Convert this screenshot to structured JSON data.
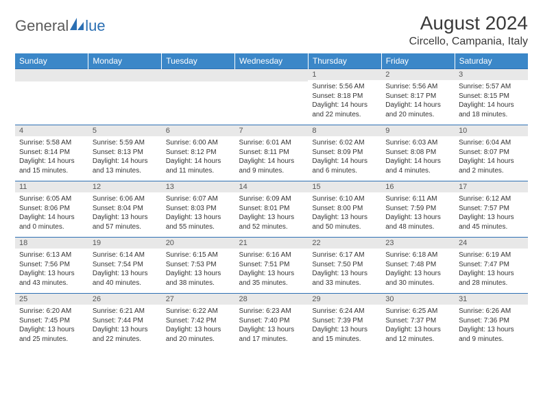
{
  "logo": {
    "textGeneral": "General",
    "textBlue": "lue"
  },
  "title": "August 2024",
  "location": "Circello, Campania, Italy",
  "colors": {
    "headerBlue": "#3b87c8",
    "borderBlue": "#2b6fb3",
    "dayBarGray": "#e8e8e8",
    "textDark": "#3a3a3a",
    "logoGray": "#5a5a5a"
  },
  "weekdays": [
    "Sunday",
    "Monday",
    "Tuesday",
    "Wednesday",
    "Thursday",
    "Friday",
    "Saturday"
  ],
  "weeks": [
    [
      null,
      null,
      null,
      null,
      {
        "n": "1",
        "sunrise": "5:56 AM",
        "sunset": "8:18 PM",
        "daylight": "14 hours and 22 minutes."
      },
      {
        "n": "2",
        "sunrise": "5:56 AM",
        "sunset": "8:17 PM",
        "daylight": "14 hours and 20 minutes."
      },
      {
        "n": "3",
        "sunrise": "5:57 AM",
        "sunset": "8:15 PM",
        "daylight": "14 hours and 18 minutes."
      }
    ],
    [
      {
        "n": "4",
        "sunrise": "5:58 AM",
        "sunset": "8:14 PM",
        "daylight": "14 hours and 15 minutes."
      },
      {
        "n": "5",
        "sunrise": "5:59 AM",
        "sunset": "8:13 PM",
        "daylight": "14 hours and 13 minutes."
      },
      {
        "n": "6",
        "sunrise": "6:00 AM",
        "sunset": "8:12 PM",
        "daylight": "14 hours and 11 minutes."
      },
      {
        "n": "7",
        "sunrise": "6:01 AM",
        "sunset": "8:11 PM",
        "daylight": "14 hours and 9 minutes."
      },
      {
        "n": "8",
        "sunrise": "6:02 AM",
        "sunset": "8:09 PM",
        "daylight": "14 hours and 6 minutes."
      },
      {
        "n": "9",
        "sunrise": "6:03 AM",
        "sunset": "8:08 PM",
        "daylight": "14 hours and 4 minutes."
      },
      {
        "n": "10",
        "sunrise": "6:04 AM",
        "sunset": "8:07 PM",
        "daylight": "14 hours and 2 minutes."
      }
    ],
    [
      {
        "n": "11",
        "sunrise": "6:05 AM",
        "sunset": "8:06 PM",
        "daylight": "14 hours and 0 minutes."
      },
      {
        "n": "12",
        "sunrise": "6:06 AM",
        "sunset": "8:04 PM",
        "daylight": "13 hours and 57 minutes."
      },
      {
        "n": "13",
        "sunrise": "6:07 AM",
        "sunset": "8:03 PM",
        "daylight": "13 hours and 55 minutes."
      },
      {
        "n": "14",
        "sunrise": "6:09 AM",
        "sunset": "8:01 PM",
        "daylight": "13 hours and 52 minutes."
      },
      {
        "n": "15",
        "sunrise": "6:10 AM",
        "sunset": "8:00 PM",
        "daylight": "13 hours and 50 minutes."
      },
      {
        "n": "16",
        "sunrise": "6:11 AM",
        "sunset": "7:59 PM",
        "daylight": "13 hours and 48 minutes."
      },
      {
        "n": "17",
        "sunrise": "6:12 AM",
        "sunset": "7:57 PM",
        "daylight": "13 hours and 45 minutes."
      }
    ],
    [
      {
        "n": "18",
        "sunrise": "6:13 AM",
        "sunset": "7:56 PM",
        "daylight": "13 hours and 43 minutes."
      },
      {
        "n": "19",
        "sunrise": "6:14 AM",
        "sunset": "7:54 PM",
        "daylight": "13 hours and 40 minutes."
      },
      {
        "n": "20",
        "sunrise": "6:15 AM",
        "sunset": "7:53 PM",
        "daylight": "13 hours and 38 minutes."
      },
      {
        "n": "21",
        "sunrise": "6:16 AM",
        "sunset": "7:51 PM",
        "daylight": "13 hours and 35 minutes."
      },
      {
        "n": "22",
        "sunrise": "6:17 AM",
        "sunset": "7:50 PM",
        "daylight": "13 hours and 33 minutes."
      },
      {
        "n": "23",
        "sunrise": "6:18 AM",
        "sunset": "7:48 PM",
        "daylight": "13 hours and 30 minutes."
      },
      {
        "n": "24",
        "sunrise": "6:19 AM",
        "sunset": "7:47 PM",
        "daylight": "13 hours and 28 minutes."
      }
    ],
    [
      {
        "n": "25",
        "sunrise": "6:20 AM",
        "sunset": "7:45 PM",
        "daylight": "13 hours and 25 minutes."
      },
      {
        "n": "26",
        "sunrise": "6:21 AM",
        "sunset": "7:44 PM",
        "daylight": "13 hours and 22 minutes."
      },
      {
        "n": "27",
        "sunrise": "6:22 AM",
        "sunset": "7:42 PM",
        "daylight": "13 hours and 20 minutes."
      },
      {
        "n": "28",
        "sunrise": "6:23 AM",
        "sunset": "7:40 PM",
        "daylight": "13 hours and 17 minutes."
      },
      {
        "n": "29",
        "sunrise": "6:24 AM",
        "sunset": "7:39 PM",
        "daylight": "13 hours and 15 minutes."
      },
      {
        "n": "30",
        "sunrise": "6:25 AM",
        "sunset": "7:37 PM",
        "daylight": "13 hours and 12 minutes."
      },
      {
        "n": "31",
        "sunrise": "6:26 AM",
        "sunset": "7:36 PM",
        "daylight": "13 hours and 9 minutes."
      }
    ]
  ]
}
